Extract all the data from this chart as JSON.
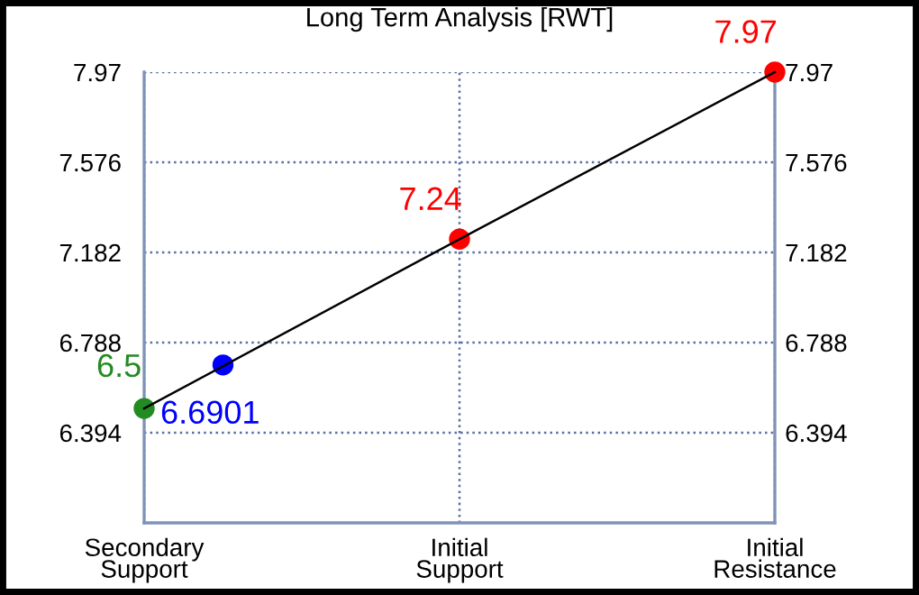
{
  "chart_data": {
    "type": "line",
    "title": "Long Term Analysis [RWT]",
    "categories": [
      "Secondary\nSupport",
      null,
      null,
      null,
      "Initial\nSupport",
      null,
      null,
      null,
      "Initial\nResistance"
    ],
    "ylim": [
      6.0,
      7.97
    ],
    "yticks": [
      7.97,
      7.576,
      7.182,
      6.788,
      6.394
    ],
    "y2lim": [
      6.0,
      7.97
    ],
    "y2ticks": [
      7.97,
      7.576,
      7.182,
      6.788,
      6.394
    ],
    "grid": true,
    "line_style": "solid",
    "series": [
      {
        "color": "#000000",
        "values": [
          6.5,
          null,
          null,
          null,
          7.24,
          null,
          null,
          null,
          7.97
        ]
      },
      {
        "type": "scatter",
        "color": "#228b22",
        "values": [
          6.5,
          null,
          null,
          null,
          null,
          null,
          null,
          null,
          null
        ],
        "value_labels": [
          "6.5",
          null,
          null,
          null,
          null,
          null,
          null,
          null,
          null
        ]
      },
      {
        "type": "scatter",
        "color": "#0000ff",
        "values": [
          null,
          6.6901,
          null,
          null,
          null,
          null,
          null,
          null,
          null
        ],
        "value_labels": [
          null,
          "6.6901",
          null,
          null,
          null,
          null,
          null,
          null,
          null
        ]
      },
      {
        "type": "scatter",
        "color": "#ff0000",
        "values": [
          null,
          null,
          null,
          null,
          7.24,
          null,
          null,
          null,
          7.97
        ],
        "value_labels": [
          null,
          null,
          null,
          null,
          "7.24",
          null,
          null,
          null,
          "7.97"
        ]
      }
    ]
  }
}
